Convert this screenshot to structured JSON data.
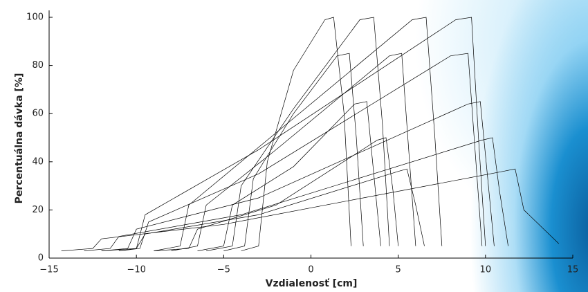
{
  "chart_data": {
    "type": "line",
    "ylabel": "Percentuálna dávka [%]",
    "xlabel": "Vzdialenosť [cm]",
    "xlim": [
      -15,
      15
    ],
    "xticks": [
      {
        "value": -15,
        "label": "−15"
      },
      {
        "value": -10,
        "label": "−10"
      },
      {
        "value": -5,
        "label": "−5"
      },
      0,
      5,
      10,
      15
    ],
    "ylim": [
      0,
      100
    ],
    "yticks": [
      0,
      20,
      40,
      60,
      80,
      100
    ],
    "series": [
      {
        "color": "#000000",
        "x": [
          -4,
          -3,
          -2.5,
          -1,
          0.8,
          1.3,
          1.9,
          2.3
        ],
        "values": [
          3,
          5,
          40,
          78,
          99,
          100,
          60,
          5
        ]
      },
      {
        "color": "#000000",
        "x": [
          -6,
          -4.5,
          -4,
          -1,
          2.8,
          3.6,
          4.1,
          4.5
        ],
        "values": [
          3,
          5,
          30,
          62,
          99,
          100,
          55,
          5
        ]
      },
      {
        "color": "#000000",
        "x": [
          -9,
          -7.5,
          -7,
          -2,
          5.8,
          6.6,
          7.1,
          7.5
        ],
        "values": [
          3,
          5,
          22,
          52,
          99,
          100,
          50,
          5
        ]
      },
      {
        "color": "#000000",
        "x": [
          -11,
          -10,
          -9.5,
          -3,
          8.3,
          9.2,
          9.6,
          10
        ],
        "values": [
          3,
          4,
          18,
          45,
          99,
          100,
          50,
          5
        ]
      },
      {
        "color": "#000000",
        "x": [
          -5,
          -3.8,
          -3.3,
          -1,
          1.5,
          2.2,
          2.6,
          3
        ],
        "values": [
          3,
          5,
          33,
          60,
          84,
          85,
          50,
          5
        ]
      },
      {
        "color": "#000000",
        "x": [
          -8,
          -6.5,
          -6,
          -2,
          4.5,
          5.2,
          5.6,
          6
        ],
        "values": [
          3,
          5,
          22,
          45,
          84,
          85,
          45,
          5
        ]
      },
      {
        "color": "#000000",
        "x": [
          -11,
          -9.8,
          -9.3,
          -3,
          8,
          9,
          9.4,
          9.8
        ],
        "values": [
          3,
          4,
          15,
          35,
          84,
          85,
          45,
          5
        ]
      },
      {
        "color": "#000000",
        "x": [
          -6.5,
          -5,
          -4.5,
          -1,
          2.5,
          3.2,
          3.6,
          4
        ],
        "values": [
          3,
          5,
          22,
          38,
          64,
          65,
          35,
          5
        ]
      },
      {
        "color": "#000000",
        "x": [
          -12,
          -10.5,
          -10,
          -3,
          9,
          9.7,
          10.1,
          10.5
        ],
        "values": [
          3,
          4,
          12,
          25,
          64,
          65,
          35,
          5
        ]
      },
      {
        "color": "#000000",
        "x": [
          -9,
          -7,
          -6.5,
          -2,
          3.8,
          4.3,
          4.7,
          5
        ],
        "values": [
          3,
          4,
          12,
          22,
          49,
          50,
          28,
          5
        ]
      },
      {
        "color": "#000000",
        "x": [
          -13,
          -11.5,
          -11,
          -4,
          9.8,
          10.4,
          10.8,
          11.3
        ],
        "values": [
          3,
          4,
          9,
          18,
          49,
          50,
          28,
          5
        ]
      },
      {
        "color": "#000000",
        "x": [
          -12,
          -10,
          -9.5,
          -3,
          5,
          5.5,
          6,
          6.5
        ],
        "values": [
          3,
          4,
          10,
          18,
          36,
          37,
          22,
          5
        ]
      },
      {
        "color": "#000000",
        "x": [
          -14.3,
          -12.5,
          -12,
          -5,
          11,
          11.7,
          12.2,
          14.2
        ],
        "values": [
          3,
          4,
          8,
          14,
          36,
          37,
          20,
          6
        ]
      }
    ]
  }
}
